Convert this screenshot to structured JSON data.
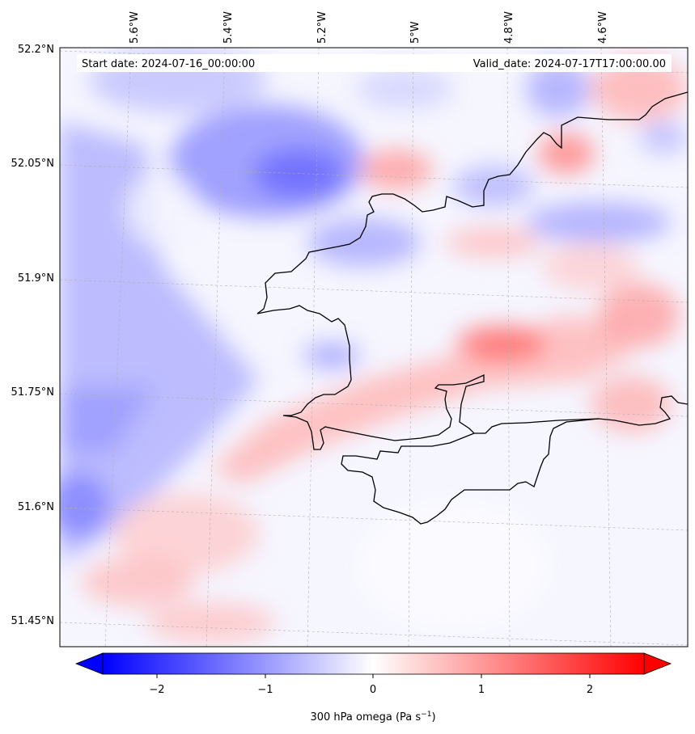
{
  "map": {
    "header_left": "Start date: 2024-07-16_00:00:00",
    "header_right": "Valid_date: 2024-07-17T17:00:00.00",
    "lon_labels": [
      "5.6°W",
      "5.4°W",
      "5.2°W",
      "5°W",
      "4.8°W",
      "4.6°W"
    ],
    "lat_labels": [
      "52.2°N",
      "52.05°N",
      "51.9°N",
      "51.75°N",
      "51.6°N",
      "51.45°N"
    ],
    "field": "omega",
    "coastline_color": "#000000"
  },
  "colorbar": {
    "label": "300 hPa omega (Pa s",
    "label_sup": "−1",
    "label_end": ")",
    "ticks": [
      "−2",
      "−1",
      "0",
      "1",
      "2"
    ],
    "min": -2.5,
    "max": 2.5,
    "colors": {
      "low": "#0000ff",
      "mid": "#ffffff",
      "high": "#ff0000"
    }
  }
}
